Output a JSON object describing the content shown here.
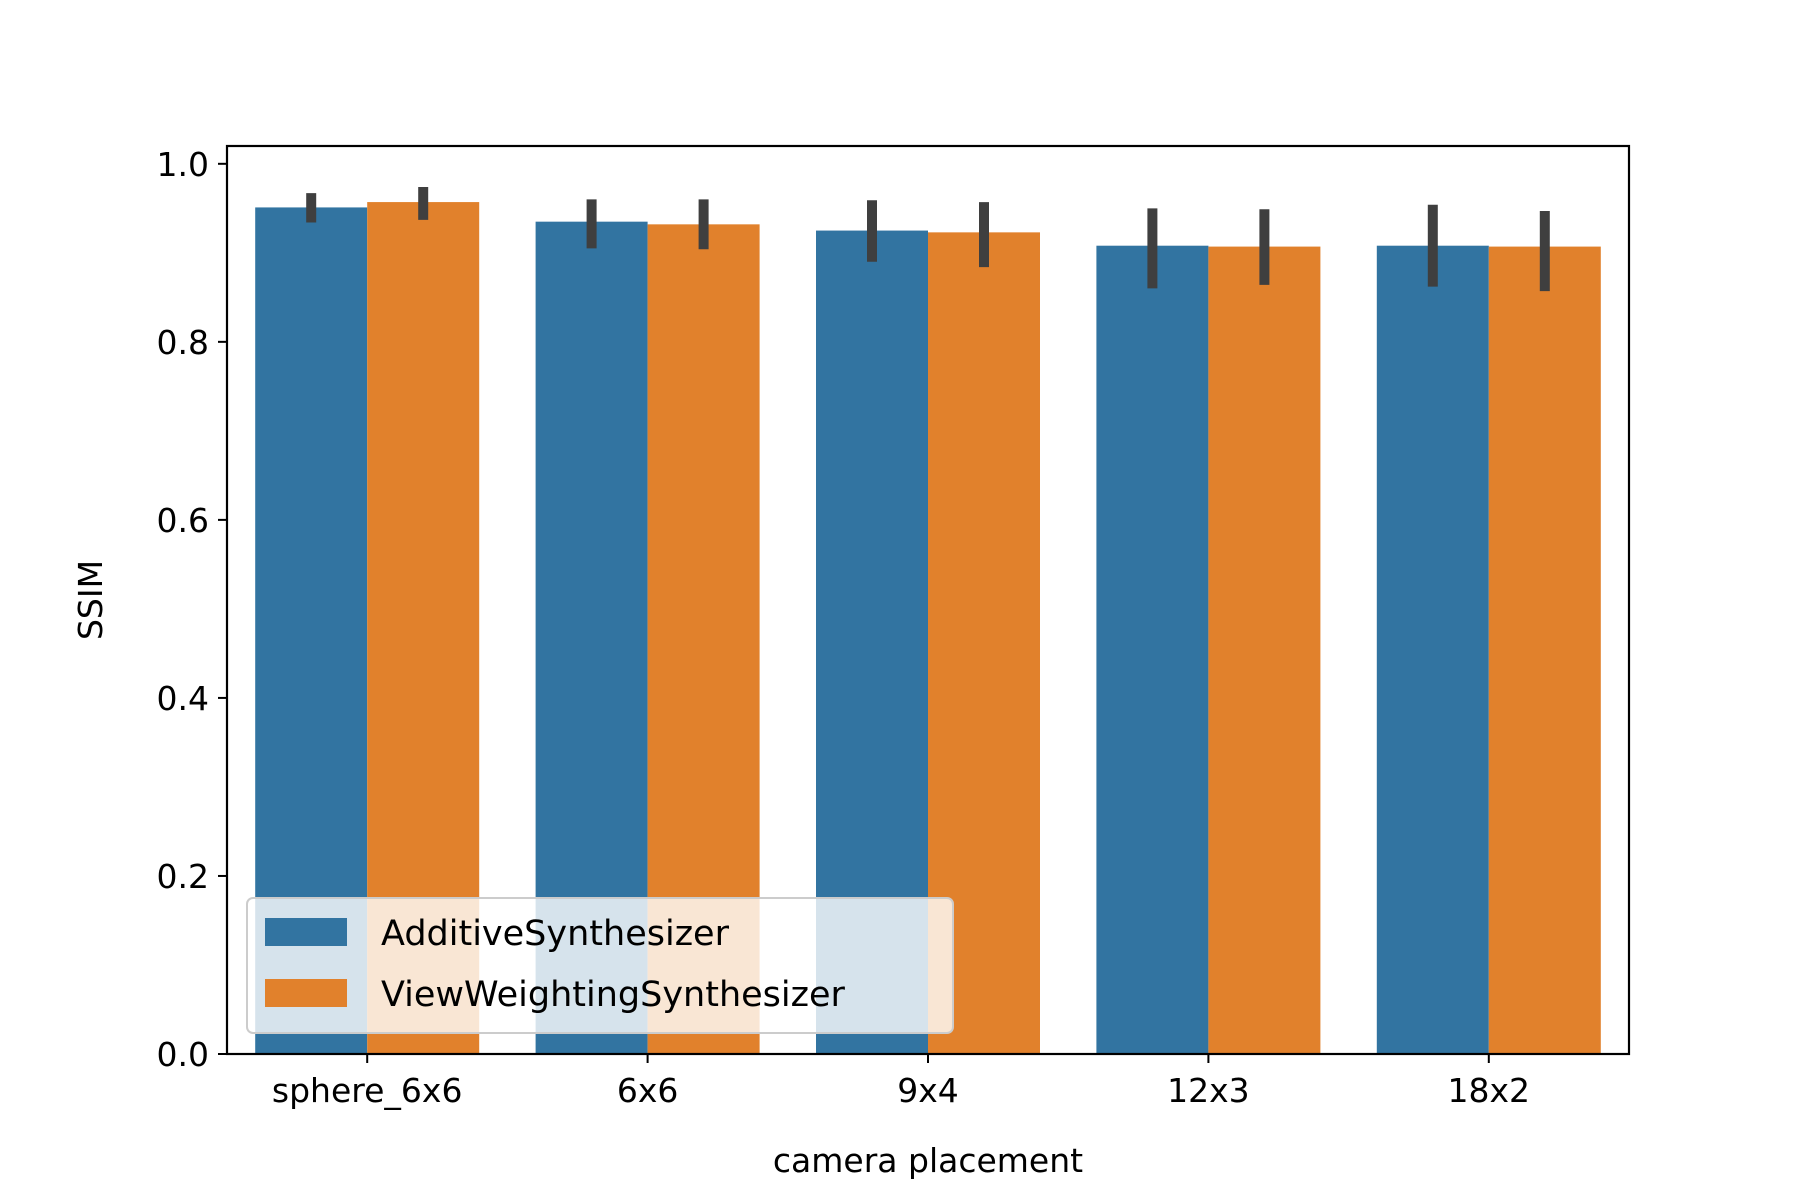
{
  "chart_data": {
    "type": "bar",
    "title": "",
    "xlabel": "camera placement",
    "ylabel": "SSIM",
    "categories": [
      "sphere_6x6",
      "6x6",
      "9x4",
      "12x3",
      "18x2"
    ],
    "series": [
      {
        "name": "AdditiveSynthesizer",
        "color": "#3274a1",
        "values": [
          0.951,
          0.935,
          0.925,
          0.908,
          0.908
        ],
        "error_low": [
          0.934,
          0.905,
          0.89,
          0.86,
          0.862
        ],
        "error_high": [
          0.967,
          0.96,
          0.959,
          0.95,
          0.954
        ]
      },
      {
        "name": "ViewWeightingSynthesizer",
        "color": "#e1812c",
        "values": [
          0.957,
          0.932,
          0.923,
          0.907,
          0.907
        ],
        "error_low": [
          0.937,
          0.904,
          0.884,
          0.864,
          0.857
        ],
        "error_high": [
          0.974,
          0.96,
          0.957,
          0.949,
          0.947
        ]
      }
    ],
    "ylim": [
      0.0,
      1.02
    ],
    "yticks": [
      "0.0",
      "0.2",
      "0.4",
      "0.6",
      "0.8",
      "1.0"
    ],
    "grid": false,
    "legend": "lower-left",
    "errorbar_color": "#3f3f3f"
  }
}
